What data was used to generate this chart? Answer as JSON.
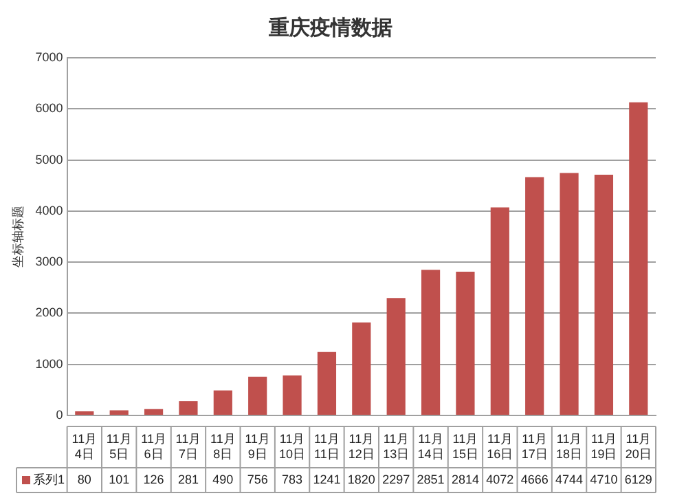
{
  "chart_data": {
    "type": "bar",
    "title": "重庆疫情数据",
    "ylabel": "坐标轴标题",
    "categories": [
      "11月4日",
      "11月5日",
      "11月6日",
      "11月7日",
      "11月8日",
      "11月9日",
      "11月10日",
      "11月11日",
      "11月12日",
      "11月13日",
      "11月14日",
      "11月15日",
      "11月16日",
      "11月17日",
      "11月18日",
      "11月19日",
      "11月20日"
    ],
    "series": [
      {
        "name": "系列1",
        "color": "#c0504d",
        "values": [
          80,
          101,
          126,
          281,
          490,
          756,
          783,
          1241,
          1820,
          2297,
          2851,
          2814,
          4072,
          4666,
          4744,
          4710,
          6129
        ]
      }
    ],
    "ylim": [
      0,
      7000
    ],
    "yticks": [
      0,
      1000,
      2000,
      3000,
      4000,
      5000,
      6000,
      7000
    ],
    "grid": "y",
    "data_labels": true
  }
}
